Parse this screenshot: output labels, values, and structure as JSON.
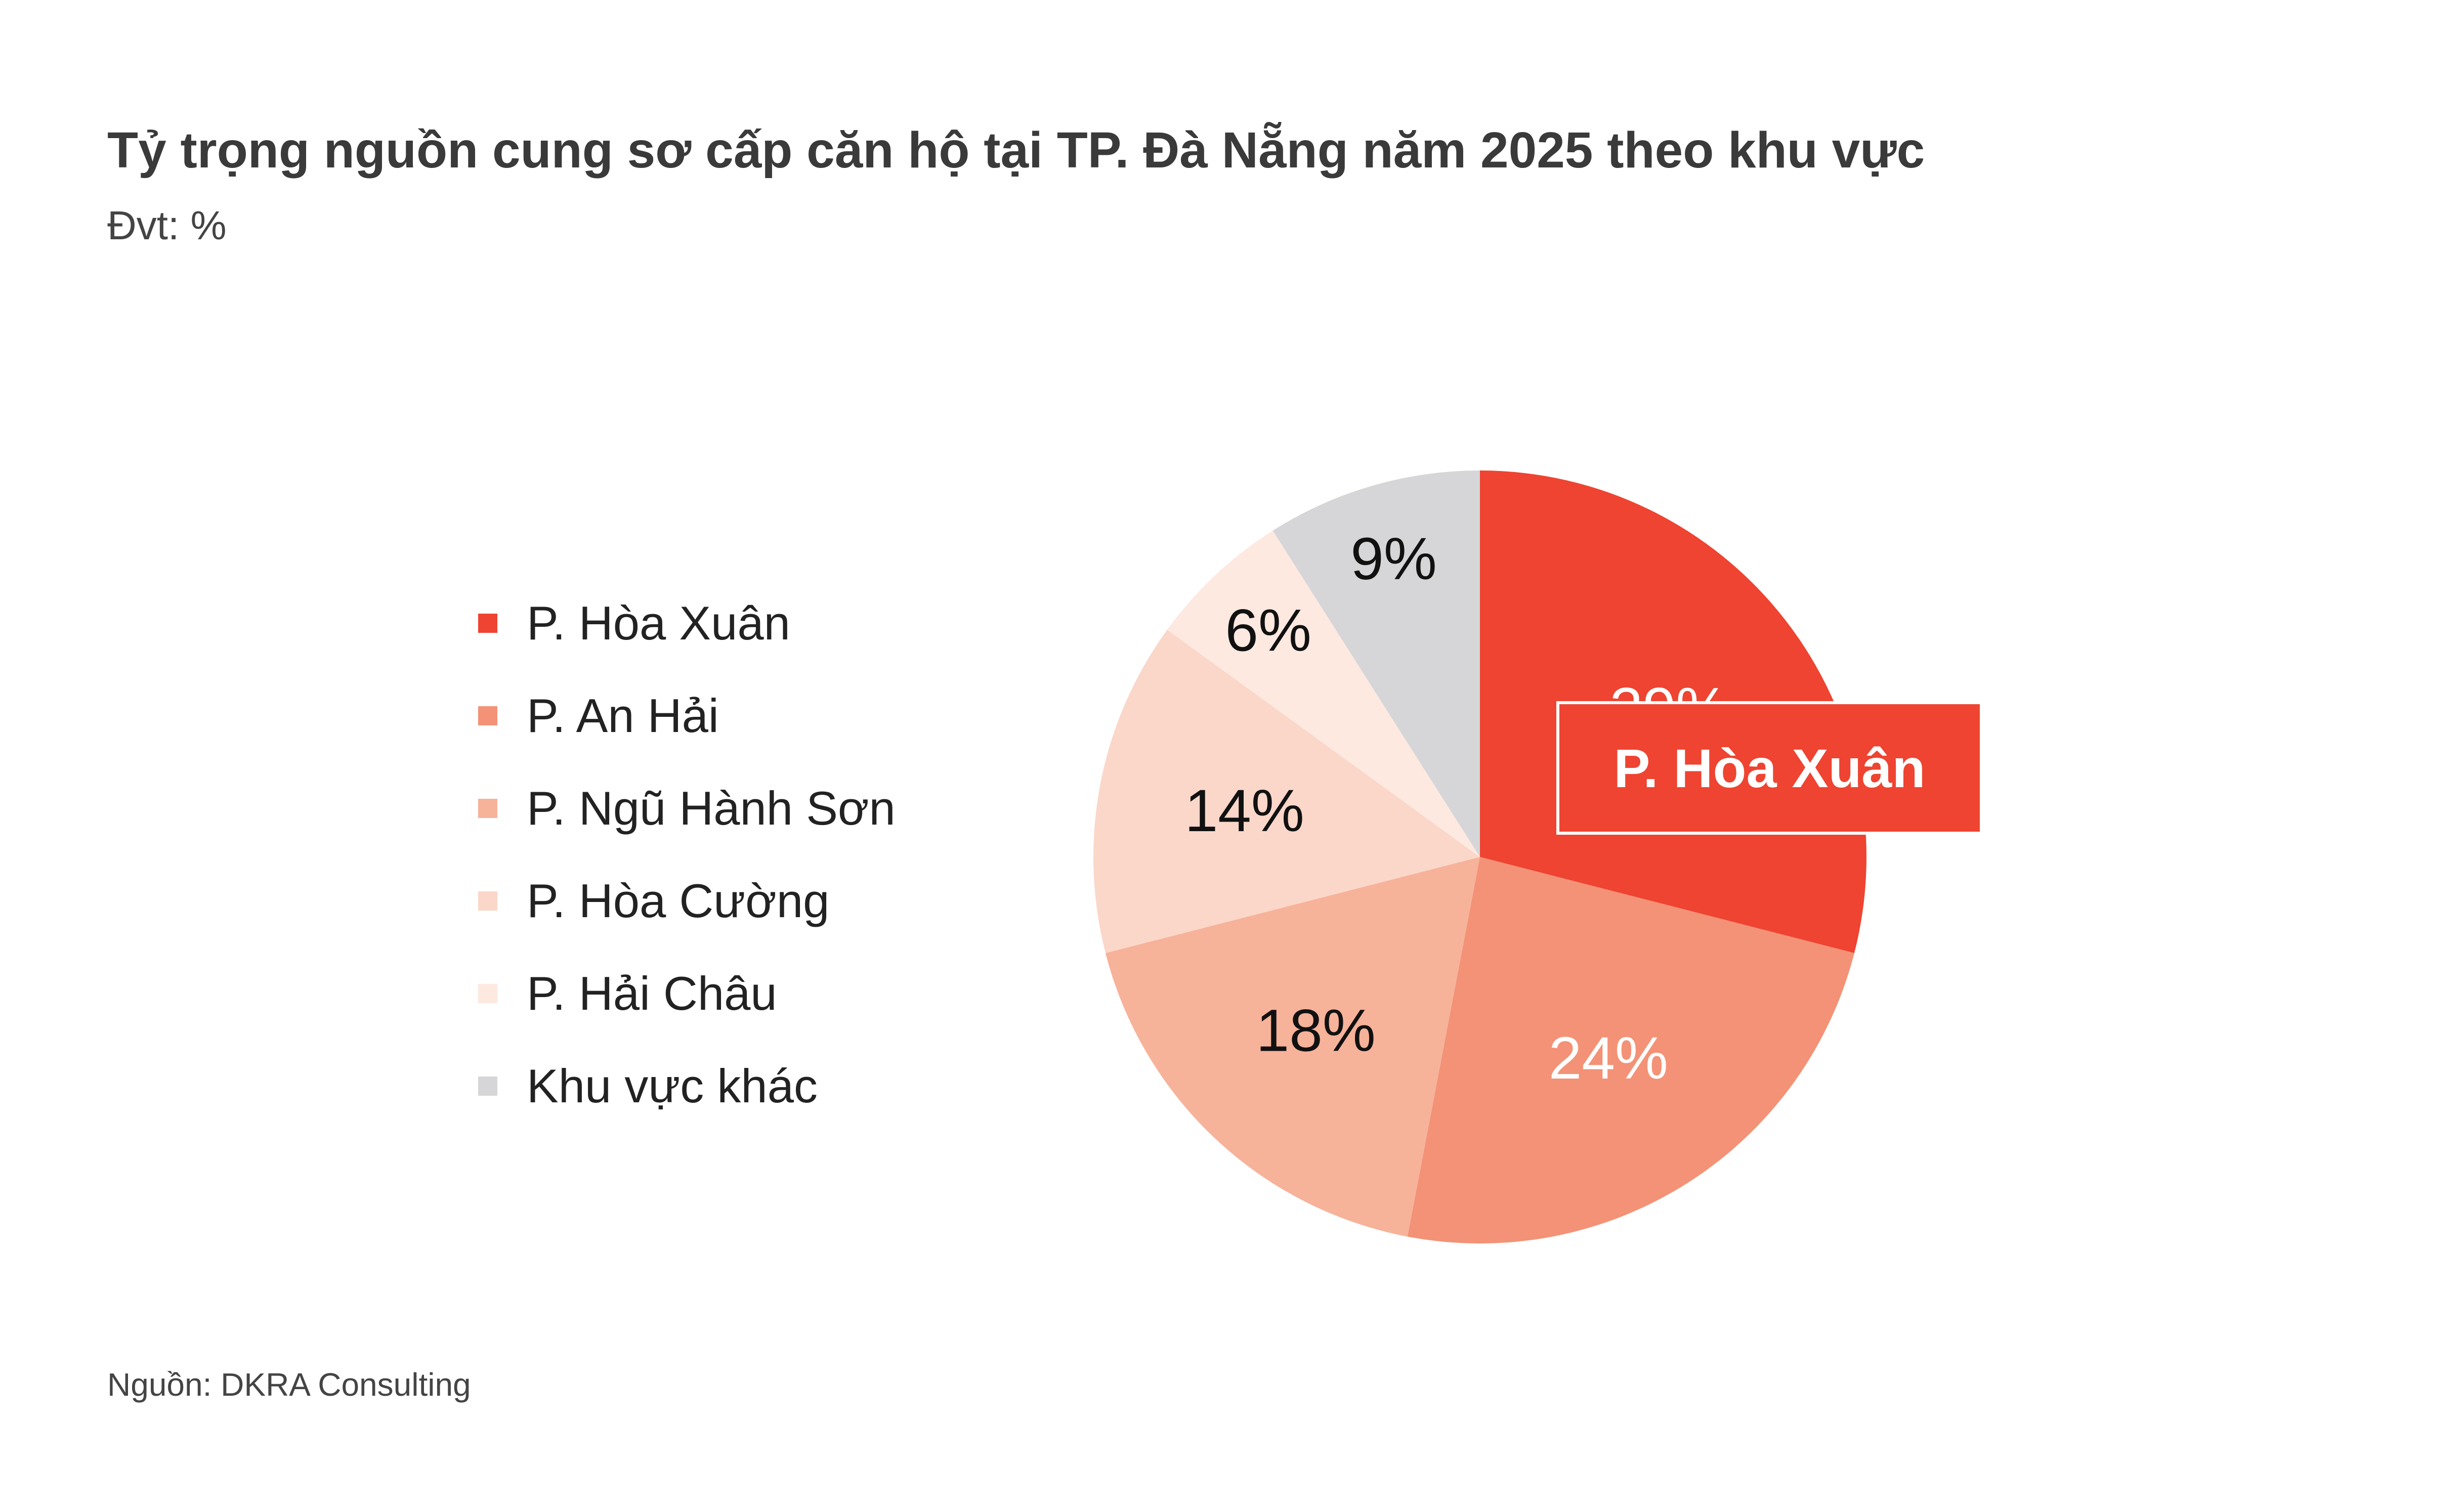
{
  "title": "Tỷ trọng nguồn cung sơ cấp căn hộ tại TP. Đà Nẵng năm 2025 theo khu vực",
  "subtitle": "Đvt: %",
  "source": "Nguồn: DKRA Consulting",
  "chart_data": {
    "type": "pie",
    "title": "Tỷ trọng nguồn cung sơ cấp căn hộ tại TP. Đà Nẵng năm 2025 theo khu vực",
    "unit": "%",
    "legend_position": "left",
    "start": "top, clockwise",
    "slices": [
      {
        "label": "P. Hòa Xuân",
        "value": 29,
        "display": "29%",
        "color": "#EE4431",
        "text_color": "#ffffff"
      },
      {
        "label": "P. An Hải",
        "value": 24,
        "display": "24%",
        "color": "#F39276",
        "text_color": "#ffffff"
      },
      {
        "label": "P. Ngũ Hành Sơn",
        "value": 18,
        "display": "18%",
        "color": "#F7B29A",
        "text_color": "#111111"
      },
      {
        "label": "P. Hòa Cường",
        "value": 14,
        "display": "14%",
        "color": "#FAD7C9",
        "text_color": "#111111"
      },
      {
        "label": "P. Hải Châu",
        "value": 6,
        "display": "6%",
        "color": "#FDE9E0",
        "text_color": "#111111"
      },
      {
        "label": "Khu vực khác",
        "value": 9,
        "display": "9%",
        "color": "#D6D6D8",
        "text_color": "#111111"
      }
    ],
    "callout": "P. Hòa Xuân"
  }
}
